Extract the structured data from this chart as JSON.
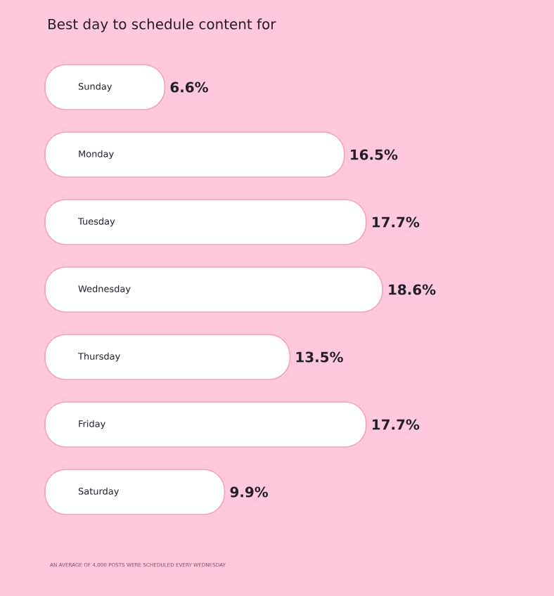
{
  "chart_data": {
    "type": "bar",
    "orientation": "horizontal",
    "title": "Best day to schedule content for",
    "categories": [
      "Sunday",
      "Monday",
      "Tuesday",
      "Wednesday",
      "Thursday",
      "Friday",
      "Saturday"
    ],
    "values": [
      6.6,
      16.5,
      17.7,
      18.6,
      13.5,
      17.7,
      9.9
    ],
    "value_labels": [
      "6.6%",
      "16.5%",
      "17.7%",
      "18.6%",
      "13.5%",
      "17.7%",
      "9.9%"
    ],
    "color": "#ffffff",
    "annotations": [
      "AN AVERAGE OF 4,000 POSTS WERE SCHEDULED EVERY WEDNESDAY"
    ]
  }
}
